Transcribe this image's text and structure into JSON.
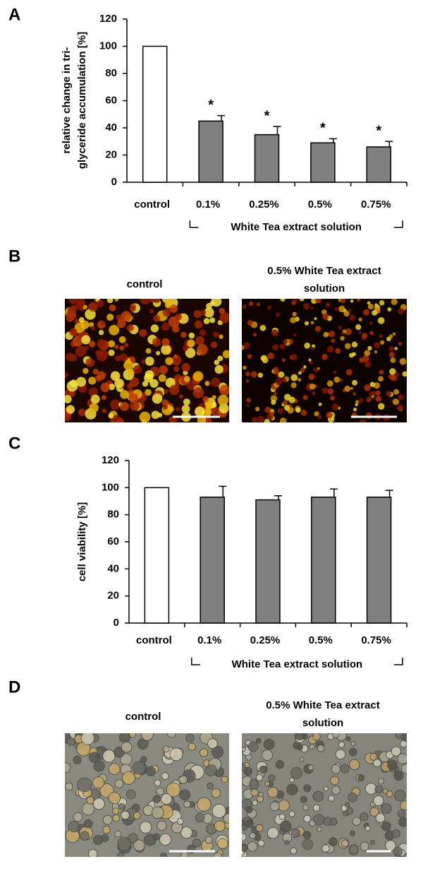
{
  "panel_labels": [
    "A",
    "B",
    "C",
    "D"
  ],
  "chart_data": [
    {
      "type": "bar",
      "ylabel": [
        "relative change in tri-",
        "glyceride accumulation [%]"
      ],
      "categories": [
        "control",
        "0.1%",
        "0.25%",
        "0.5%",
        "0.75%"
      ],
      "values": [
        100,
        45,
        35,
        29,
        26
      ],
      "errors": [
        null,
        4,
        6,
        3,
        4
      ],
      "value_markers": [
        null,
        "*",
        "*",
        "*",
        "*"
      ],
      "colors": [
        "#ffffff",
        "#808080",
        "#808080",
        "#808080",
        "#808080"
      ],
      "group_label": "White Tea extract solution",
      "ylim": [
        0,
        120
      ],
      "yticks": [
        0,
        20,
        40,
        60,
        80,
        100,
        120
      ]
    },
    {
      "type": "bar",
      "ylabel": [
        "cell viability [%]"
      ],
      "categories": [
        "control",
        "0.1%",
        "0.25%",
        "0.5%",
        "0.75%"
      ],
      "values": [
        100,
        93,
        91,
        93,
        93
      ],
      "errors": [
        null,
        8,
        3,
        6,
        5
      ],
      "value_markers": [
        null,
        null,
        null,
        null,
        null
      ],
      "colors": [
        "#ffffff",
        "#808080",
        "#808080",
        "#808080",
        "#808080"
      ],
      "group_label": "White Tea extract solution",
      "ylim": [
        0,
        120
      ],
      "yticks": [
        0,
        20,
        40,
        60,
        80,
        100,
        120
      ]
    }
  ],
  "image_panels": [
    {
      "left_caption": "control",
      "right_caption": [
        "0.5% White Tea extract",
        "solution"
      ]
    },
    {
      "left_caption": "control",
      "right_caption": [
        "0.5% White Tea extract",
        "solution"
      ]
    }
  ]
}
